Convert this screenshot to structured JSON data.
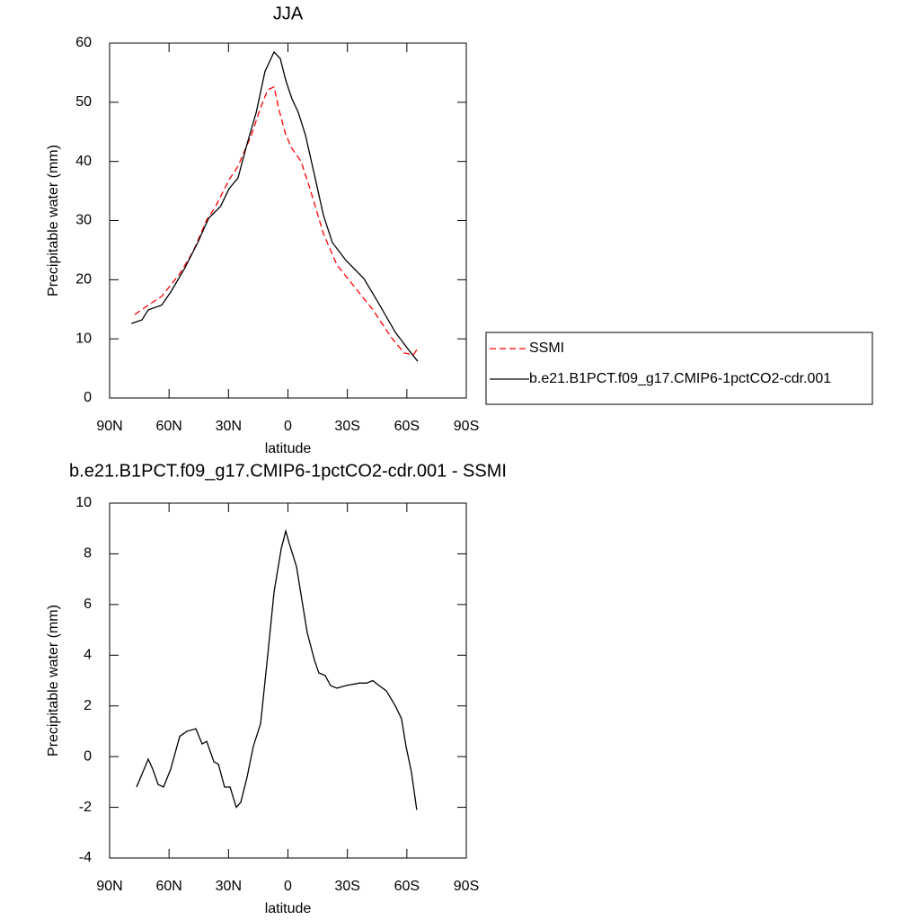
{
  "chart_data": [
    {
      "type": "line",
      "title": "JJA",
      "xlabel": "latitude",
      "ylabel": "Precipitable water (mm)",
      "xlim": [
        90,
        -90
      ],
      "xticks": [
        {
          "value": 90,
          "label": "90N"
        },
        {
          "value": 60,
          "label": "60N"
        },
        {
          "value": 30,
          "label": "30N"
        },
        0,
        {
          "value": -30,
          "label": "30S"
        },
        {
          "value": -60,
          "label": "60S"
        },
        {
          "value": -90,
          "label": "90S"
        }
      ],
      "ylim": [
        0,
        60
      ],
      "yticks": [
        0,
        10,
        20,
        30,
        40,
        50,
        60
      ],
      "legend": "right",
      "series": [
        {
          "name": "SSMI",
          "color": "#ff0000",
          "dashed": true,
          "x": [
            77.3,
            70.5,
            63.7,
            54.6,
            47.8,
            41,
            36.5,
            29.7,
            25.2,
            18.4,
            13.8,
            10.2,
            7,
            4.8,
            1.1,
            -2,
            -6.6,
            -11.1,
            -17.9,
            -24.7,
            -33.8,
            -42.9,
            -52,
            -58.7,
            -63.3,
            -65.5
          ],
          "values": [
            14.1,
            15.7,
            17.2,
            21,
            24.8,
            30.1,
            32.4,
            36.9,
            39.2,
            44.5,
            49.1,
            52.1,
            52.6,
            49.1,
            44.5,
            42.2,
            40,
            35.4,
            27.8,
            22.5,
            18.7,
            14.9,
            10.3,
            7.6,
            7.3,
            8.4
          ]
        },
        {
          "name": "b.e21.B1PCT.f09_g17.CMIP6-1pctCO2-cdr.001",
          "color": "#000000",
          "dashed": false,
          "x": [
            79,
            73.7,
            70.5,
            63.7,
            59,
            52,
            45.5,
            40,
            34,
            29.7,
            25.2,
            20.6,
            16,
            11.6,
            7,
            3.9,
            1,
            -2,
            -5.2,
            -8.8,
            -13.4,
            -17.9,
            -22.4,
            -29.2,
            -38.3,
            -45.1,
            -54.2,
            -61,
            -65.5
          ],
          "values": [
            12.6,
            13.2,
            14.9,
            15.7,
            18,
            22,
            26.3,
            30.4,
            32.4,
            35.4,
            37.2,
            43,
            48.3,
            55.2,
            58.5,
            57.4,
            53.6,
            50.6,
            48.3,
            44.5,
            37.7,
            30.9,
            26.3,
            23.3,
            20.2,
            16.4,
            11.1,
            8.1,
            6.2
          ]
        }
      ]
    },
    {
      "type": "line",
      "title": "b.e21.B1PCT.f09_g17.CMIP6-1pctCO2-cdr.001 - SSMI",
      "xlabel": "latitude",
      "ylabel": "Precipitable water (mm)",
      "xlim": [
        90,
        -90
      ],
      "xticks": [
        {
          "value": 90,
          "label": "90N"
        },
        {
          "value": 60,
          "label": "60N"
        },
        {
          "value": 30,
          "label": "30N"
        },
        0,
        {
          "value": -30,
          "label": "30S"
        },
        {
          "value": -60,
          "label": "60S"
        },
        {
          "value": -90,
          "label": "90S"
        }
      ],
      "ylim": [
        -4,
        10
      ],
      "yticks": [
        -4,
        -2,
        0,
        2,
        4,
        6,
        8,
        10
      ],
      "series": [
        {
          "color": "#000000",
          "dashed": false,
          "x": [
            76.4,
            73.7,
            70.5,
            68.2,
            65.5,
            62.8,
            59.2,
            54.6,
            51,
            46.5,
            43.3,
            41,
            37.4,
            35.1,
            32,
            29.2,
            26.1,
            23.8,
            20.6,
            17.5,
            13.8,
            10.2,
            7,
            3.4,
            1.1,
            -0.7,
            -4.3,
            -9.7,
            -13.4,
            -15.6,
            -18.8,
            -21.5,
            -24.7,
            -29.2,
            -36,
            -39.7,
            -42.8,
            -46,
            -49.6,
            -54.2,
            -57.3,
            -59.6,
            -62.3,
            -65
          ],
          "values": [
            -1.2,
            -0.7,
            -0.1,
            -0.5,
            -1.1,
            -1.2,
            -0.5,
            0.8,
            1,
            1.1,
            0.5,
            0.6,
            -0.2,
            -0.3,
            -1.2,
            -1.2,
            -2,
            -1.8,
            -0.8,
            0.4,
            1.3,
            4,
            6.5,
            8.2,
            8.9,
            8.4,
            7.5,
            4.9,
            3.8,
            3.3,
            3.2,
            2.8,
            2.7,
            2.8,
            2.9,
            2.9,
            3,
            2.8,
            2.6,
            2,
            1.5,
            0.4,
            -0.6,
            -2.1
          ]
        }
      ]
    }
  ]
}
